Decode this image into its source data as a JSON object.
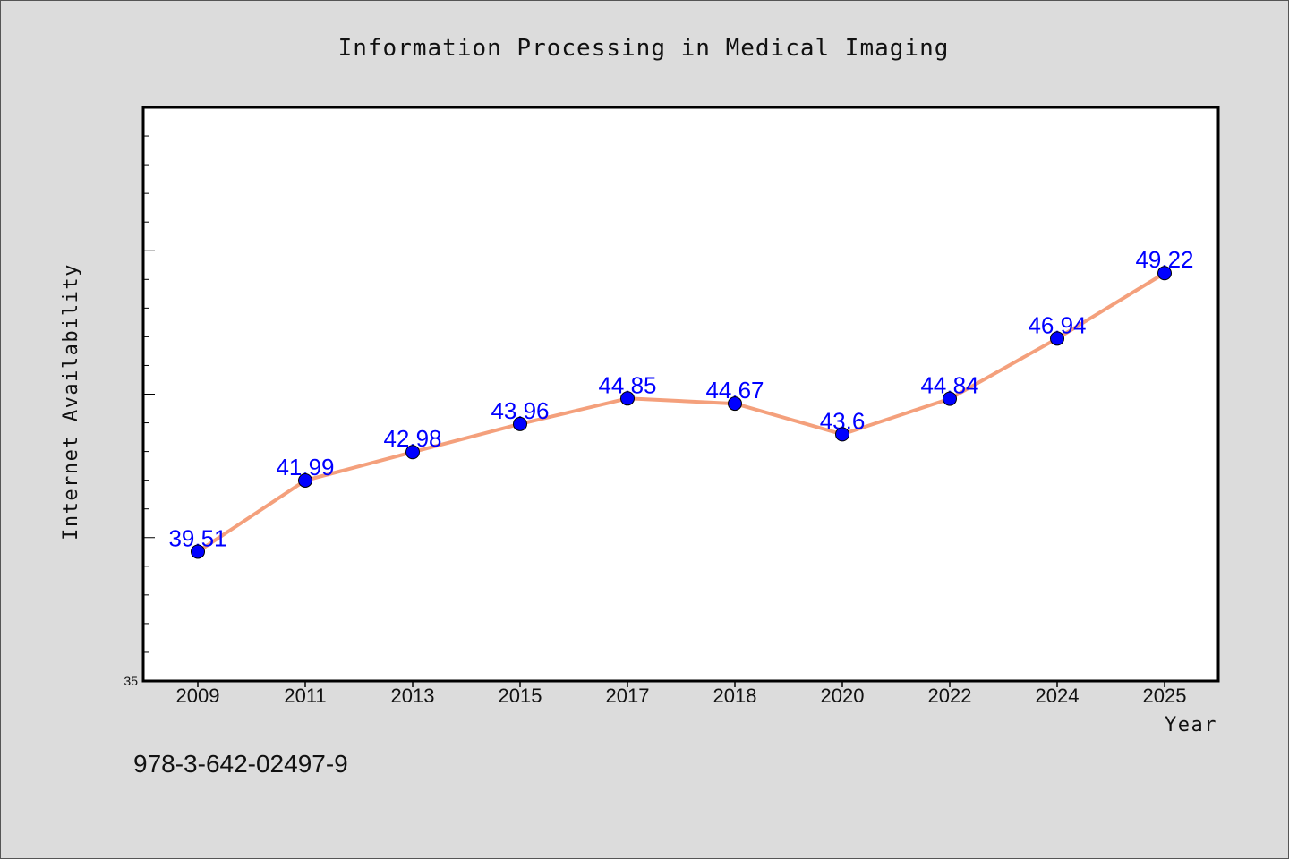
{
  "chart_data": {
    "type": "line",
    "title": "Information Processing in Medical Imaging",
    "xlabel": "Year",
    "ylabel": "Internet Availability",
    "categories": [
      "2009",
      "2011",
      "2013",
      "2015",
      "2017",
      "2018",
      "2020",
      "2022",
      "2024",
      "2025"
    ],
    "series": [
      {
        "values": [
          39.51,
          41.99,
          42.98,
          43.96,
          44.85,
          44.67,
          43.6,
          44.84,
          46.94,
          49.22
        ],
        "data_labels": [
          "39.51",
          "41.99",
          "42.98",
          "43.96",
          "44.85",
          "44.67",
          "43.6",
          "44.84",
          "46.94",
          "49.22"
        ]
      }
    ],
    "ylim": [
      35,
      55
    ],
    "ytick_labels": [
      "35"
    ],
    "grid": false,
    "legend": "none",
    "colors": {
      "line": "#f4a07c",
      "marker": "#0000ff",
      "data_label": "#0000ff",
      "plot_background": "#ffffff",
      "page_background": "#dcdcdc"
    }
  },
  "footer": {
    "isbn": "978-3-642-02497-9"
  }
}
